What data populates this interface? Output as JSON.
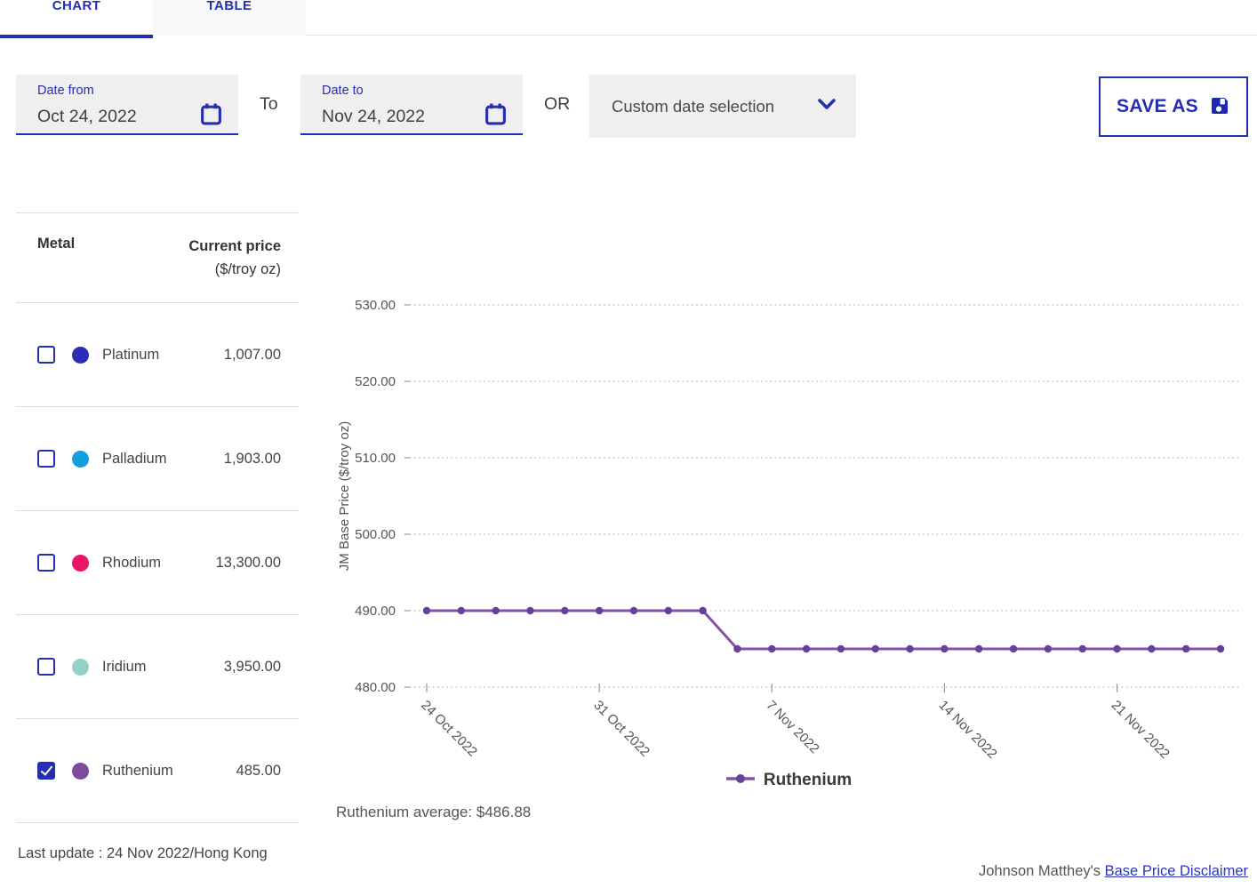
{
  "tabs": {
    "chart": "CHART",
    "table": "TABLE"
  },
  "filters": {
    "date_from": {
      "label": "Date from",
      "value": "Oct 24, 2022"
    },
    "to_label": "To",
    "date_to": {
      "label": "Date to",
      "value": "Nov 24, 2022"
    },
    "or_label": "OR",
    "custom_select": {
      "value": "Custom date selection"
    },
    "save_as_label": "SAVE AS"
  },
  "metals": {
    "header": {
      "col_metal": "Metal",
      "col_price": "Current price",
      "col_price_unit": "($/troy oz)"
    },
    "items": [
      {
        "name": "Platinum",
        "price": "1,007.00",
        "color": "#2b2eb3",
        "checked": false
      },
      {
        "name": "Palladium",
        "price": "1,903.00",
        "color": "#129fe1",
        "checked": false
      },
      {
        "name": "Rhodium",
        "price": "13,300.00",
        "color": "#ea1566",
        "checked": false
      },
      {
        "name": "Iridium",
        "price": "3,950.00",
        "color": "#93d1c4",
        "checked": false
      },
      {
        "name": "Ruthenium",
        "price": "485.00",
        "color": "#7c4ba0",
        "checked": true
      }
    ],
    "last_update": "Last update : 24 Nov 2022/Hong Kong"
  },
  "chart_data": {
    "type": "line",
    "ylabel": "JM Base Price ($/troy oz)",
    "ylim": [
      480,
      530
    ],
    "yticks": [
      480,
      490,
      500,
      510,
      520,
      530
    ],
    "ytick_labels": [
      "480.00",
      "490.00",
      "500.00",
      "510.00",
      "520.00",
      "530.00"
    ],
    "grid": "dotted-horizontal",
    "x": [
      "24 Oct 2022",
      "25 Oct 2022",
      "26 Oct 2022",
      "27 Oct 2022",
      "28 Oct 2022",
      "31 Oct 2022",
      "1 Nov 2022",
      "2 Nov 2022",
      "3 Nov 2022",
      "4 Nov 2022",
      "7 Nov 2022",
      "8 Nov 2022",
      "9 Nov 2022",
      "10 Nov 2022",
      "11 Nov 2022",
      "14 Nov 2022",
      "15 Nov 2022",
      "16 Nov 2022",
      "17 Nov 2022",
      "18 Nov 2022",
      "21 Nov 2022",
      "22 Nov 2022",
      "23 Nov 2022",
      "24 Nov 2022"
    ],
    "xtick_labels": [
      "24 Oct 2022",
      "31 Oct 2022",
      "7 Nov 2022",
      "14 Nov 2022",
      "21 Nov 2022"
    ],
    "xtick_positions": [
      0,
      5,
      10,
      15,
      20
    ],
    "series": [
      {
        "name": "Ruthenium",
        "color": "#7e53a8",
        "marker_color": "#67409a",
        "values": [
          490,
          490,
          490,
          490,
          490,
          490,
          490,
          490,
          490,
          485,
          485,
          485,
          485,
          485,
          485,
          485,
          485,
          485,
          485,
          485,
          485,
          485,
          485,
          485
        ]
      }
    ],
    "legend": {
      "label": "Ruthenium",
      "position": "bottom-center"
    },
    "average_note": "Ruthenium average: $486.88"
  },
  "footer": {
    "prefix": "Johnson Matthey's ",
    "link": "Base Price Disclaimer"
  }
}
